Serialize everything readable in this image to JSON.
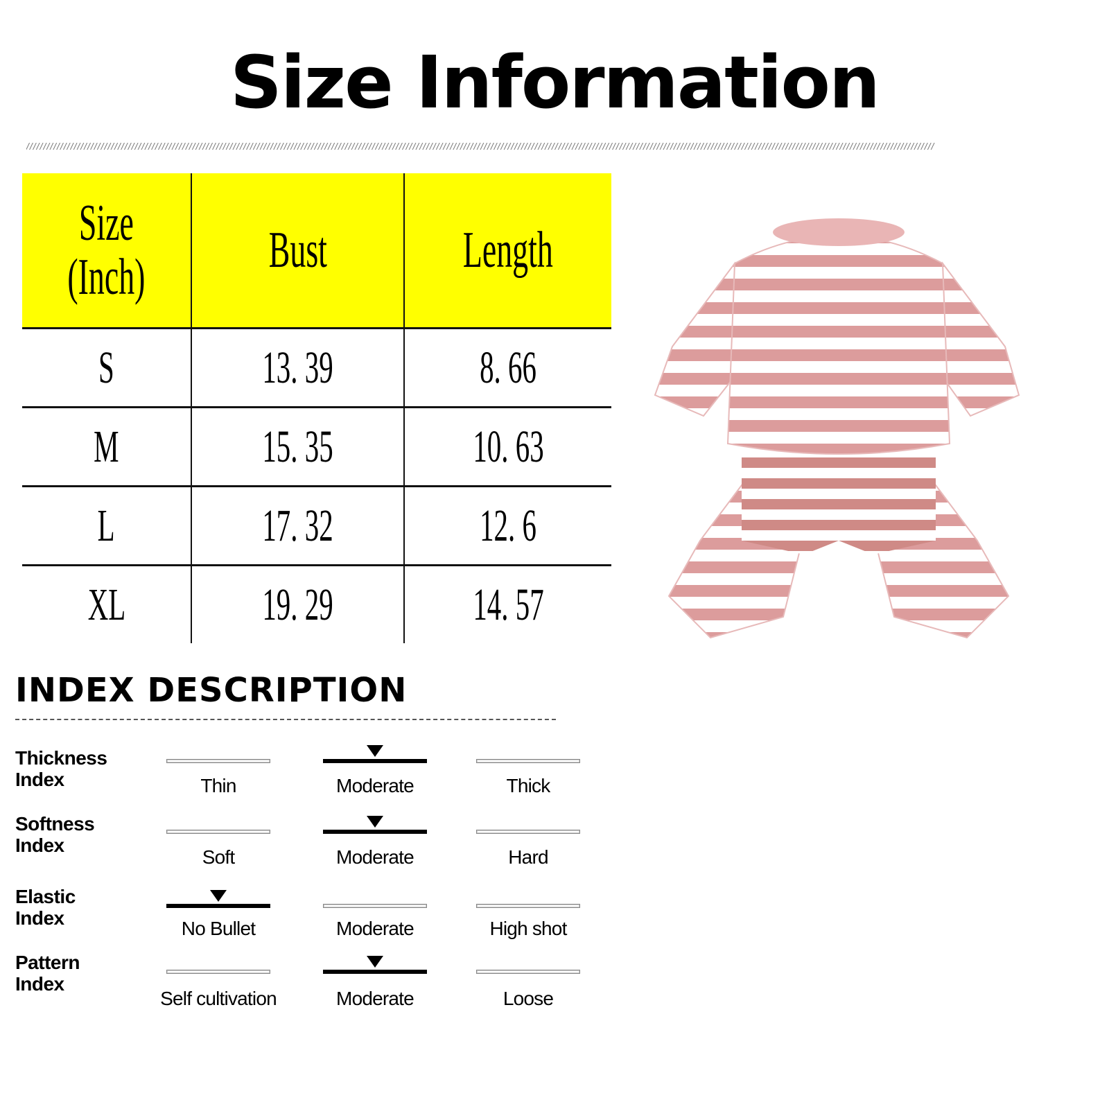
{
  "title": "Size Information",
  "size_table": {
    "headers": [
      "Size\n(Inch)",
      "Bust",
      "Length"
    ],
    "header_lines": [
      "Size",
      "(Inch)"
    ],
    "header_color": "#ffff00",
    "rows": [
      {
        "size": "S",
        "bust": "13. 39",
        "length": "8. 66"
      },
      {
        "size": "M",
        "bust": "15. 35",
        "length": "10. 63"
      },
      {
        "size": "L",
        "bust": "17. 32",
        "length": "12. 6"
      },
      {
        "size": "XL",
        "bust": "19. 29",
        "length": "14. 57"
      }
    ]
  },
  "product_image": {
    "description_icon": "striped-pet-jumpsuit",
    "stripe_color": "#dc9c9c"
  },
  "index_description": {
    "title": "INDEX DESCRIPTION",
    "rows": [
      {
        "label1": "Thickness",
        "label2": "Index",
        "options": [
          "Thin",
          "Moderate",
          "Thick"
        ],
        "selected": 1
      },
      {
        "label1": "Softness",
        "label2": "Index",
        "options": [
          "Soft",
          "Moderate",
          "Hard"
        ],
        "selected": 1
      },
      {
        "label1": "Elastic",
        "label2": "Index",
        "options": [
          "No Bullet",
          "Moderate",
          "High shot"
        ],
        "selected": 0
      },
      {
        "label1": "Pattern",
        "label2": "Index",
        "options": [
          "Self cultivation",
          "Moderate",
          "Loose"
        ],
        "selected": 1
      }
    ]
  }
}
